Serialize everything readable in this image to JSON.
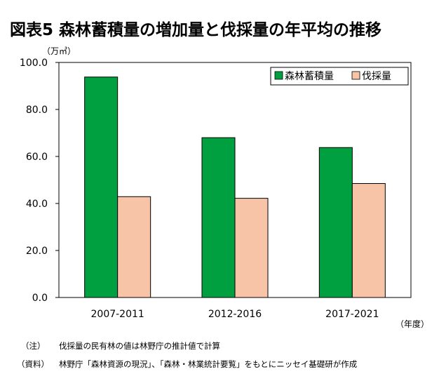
{
  "chart_data": {
    "type": "bar",
    "title": "図表5 森林蓄積量の増加量と伐採量の年平均の推移",
    "y_unit": "（万㎥）",
    "x_unit": "（年度）",
    "categories": [
      "2007-2011",
      "2012-2016",
      "2017-2021"
    ],
    "series": [
      {
        "name": "森林蓄積量",
        "values": [
          93.8,
          68.0,
          63.8
        ],
        "color": "#00a040"
      },
      {
        "name": "伐採量",
        "values": [
          42.9,
          42.2,
          48.5
        ],
        "color": "#f7c4a8"
      }
    ],
    "ylim": [
      0,
      100
    ],
    "yticks": [
      "0.0",
      "20.0",
      "40.0",
      "60.0",
      "80.0",
      "100.0"
    ],
    "grid": false,
    "legend_position": "top-right"
  },
  "notes": {
    "note_label": "（注）",
    "note_text": "伐採量の民有林の値は林野庁の推計値で計算",
    "source_label": "（資料）",
    "source_text": "林野庁「森林資源の現況」、「森林・林業統計要覧」をもとにニッセイ基礎研が作成"
  }
}
